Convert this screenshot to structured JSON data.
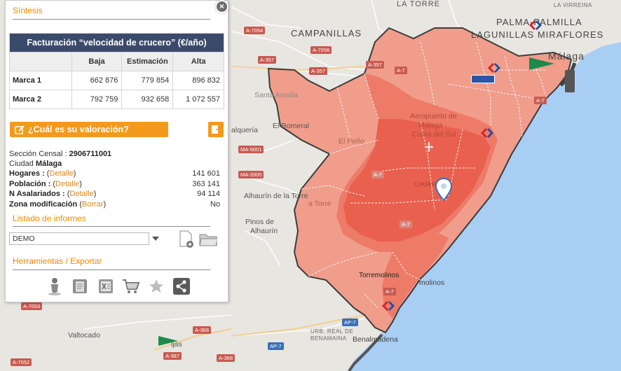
{
  "map": {
    "places": {
      "la_torre": "LA TORRE",
      "campanillas": "CAMPANILLAS",
      "palma_palmilla": "PALMA-PALMILLA",
      "lagunillas_miraflores": "LAGUNILLAS MIRAFLORES",
      "malaga": "Málaga",
      "la_virreina": "LA VIRREINA",
      "el_romeral": "El Romeral",
      "calqueria": "alquería",
      "el_pino": "El Peño",
      "alhaurin_torre": "Alhaurín de la Torre",
      "pinos_alhaurin_1": "Pinos de",
      "pinos_alhaurin_2": "Alhaurín",
      "torremolinos": "Torremolinos",
      "torremolinos_2": "molinos",
      "valtocado": "Valtocado",
      "benalmadena": "Benalmádena",
      "urb_real": "URB. REAL DE",
      "benamaina": "BENAMAINA",
      "aeropuerto_1": "Aeropuerto de",
      "aeropuerto_2": "Málaga -",
      "aeropuerto_3": "Costa del Sol",
      "santa_amalia": "Santa Amalia",
      "mijas": "ijas",
      "la_torre_2": "a Torre",
      "churriana": "CHURRIANA"
    },
    "roads": [
      "A-7054",
      "A-7056",
      "A-357",
      "A-357",
      "A-357",
      "MA-5001",
      "MA-3300",
      "A-7",
      "A-7",
      "A-7",
      "A-7",
      "AP-7",
      "AP-7",
      "A-368",
      "A-368",
      "A-387",
      "A-7053",
      "A-7052",
      "A-7"
    ],
    "colors": {
      "zone_light": "#f19a88",
      "zone_mid": "#ee7a68",
      "zone_dark": "#e9604e",
      "sea": "#a9cef4",
      "land": "#e8e6e1"
    }
  },
  "panel": {
    "sintesis_title": "Síntesis",
    "close_icon": "×",
    "table": {
      "header": "Facturación “velocidad de crucero” (€/año)",
      "columns": [
        "Baja",
        "Estimación",
        "Alta"
      ],
      "rows": [
        {
          "label": "Marca 1",
          "values": [
            "662 876",
            "779 854",
            "896 832"
          ]
        },
        {
          "label": "Marca 2",
          "values": [
            "792 759",
            "932 658",
            "1 072 557"
          ]
        }
      ]
    },
    "valoracion_label": "¿Cuál es su valoración?",
    "seccion_label": "Sección Censal :",
    "seccion_value": "2906711001",
    "ciudad_label": "Ciudad",
    "ciudad_value": "Málaga",
    "hogares_label": "Hogares :",
    "hogares_link": "Detalle",
    "hogares_value": "141 601",
    "poblacion_label": "Población :",
    "poblacion_link": "Detalle",
    "poblacion_value": "363 141",
    "asalariados_label": "N Asalariados :",
    "asalariados_link": "Detalle",
    "asalariados_value": "94 114",
    "zona_label": "Zona modificación",
    "zona_link": "Borrar",
    "zona_value": "No",
    "informes_title": "Listado de informes",
    "informes_selected": "DEMO",
    "herramientas_title": "Herramientas / Exportar"
  }
}
